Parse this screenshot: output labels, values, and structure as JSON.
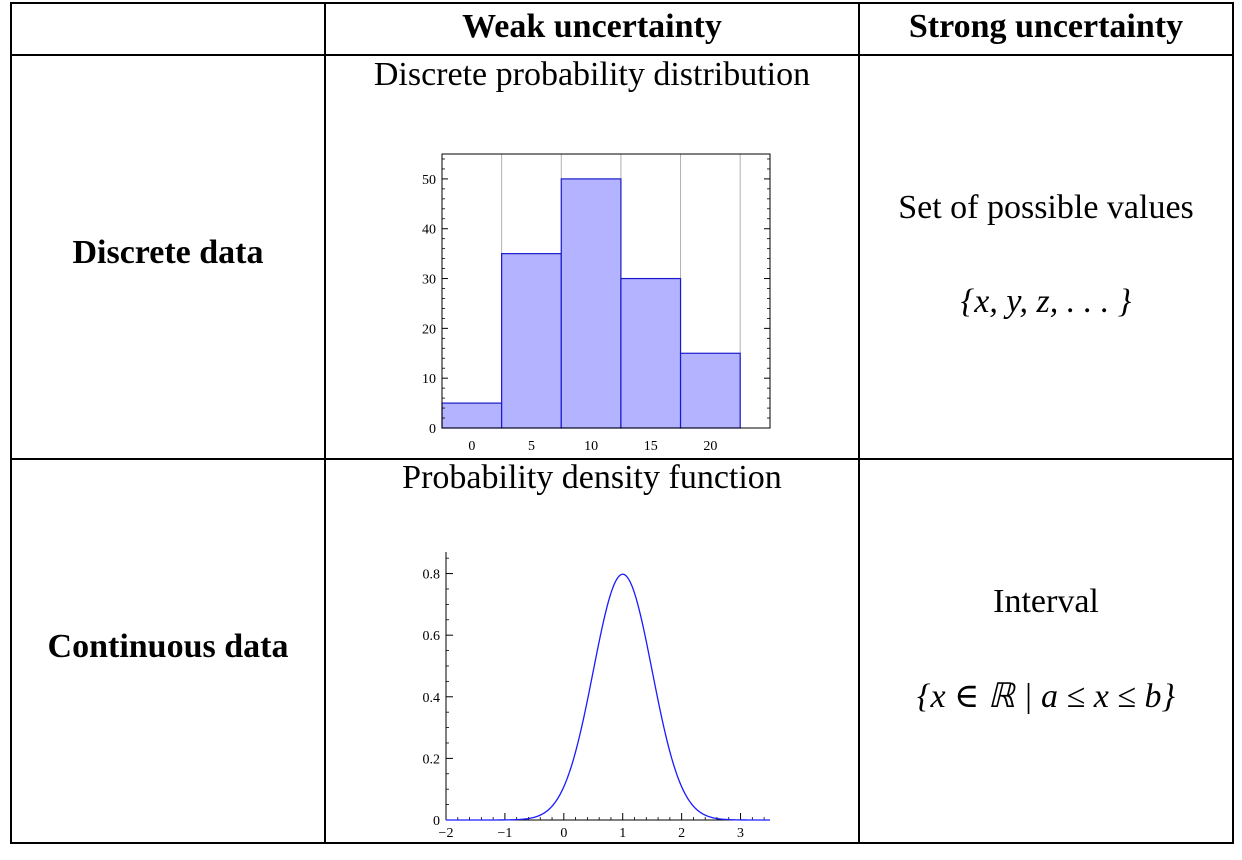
{
  "table": {
    "col_headers": [
      "Weak uncertainty",
      "Strong uncertainty"
    ],
    "rows": [
      {
        "label": "Discrete data",
        "weak_title": "Discrete probability distribution",
        "strong_title": "Set of possible values",
        "strong_expr": "{x, y, z, . . . }"
      },
      {
        "label": "Continuous data",
        "weak_title": "Probability density function",
        "strong_title": "Interval",
        "strong_expr": "{x ∈ ℝ | a ≤ x ≤ b}"
      }
    ]
  },
  "chart_data": [
    {
      "type": "bar",
      "title": "",
      "categories": [
        "0",
        "5",
        "10",
        "15",
        "20"
      ],
      "x_centers": [
        0,
        5,
        10,
        15,
        20
      ],
      "bin_width": 5,
      "values": [
        5,
        35,
        50,
        30,
        15
      ],
      "xticks": [
        0,
        5,
        10,
        15,
        20
      ],
      "yticks": [
        0,
        10,
        20,
        30,
        40,
        50
      ],
      "xlim": [
        -2.5,
        25
      ],
      "ylim": [
        0,
        55
      ],
      "grid": true,
      "colors": {
        "fill": "#b3b3ff",
        "stroke": "#1a1acc",
        "grid": "#b0b0b0"
      }
    },
    {
      "type": "line",
      "title": "",
      "function": "normal",
      "mean": 1,
      "sd": 0.5,
      "xticks": [
        -2,
        -1,
        0,
        1,
        2,
        3
      ],
      "xtick_labels": [
        "−2",
        "−1",
        "0",
        "1",
        "2",
        "3"
      ],
      "yticks": [
        0,
        0.2,
        0.4,
        0.6,
        0.8
      ],
      "ytick_labels": [
        "0",
        "0.2",
        "0.4",
        "0.6",
        "0.8"
      ],
      "xlim": [
        -2,
        3.5
      ],
      "ylim": [
        0,
        0.87
      ],
      "colors": {
        "line": "#1a1aff"
      }
    }
  ]
}
